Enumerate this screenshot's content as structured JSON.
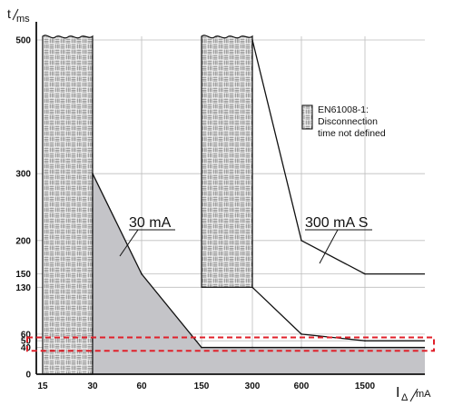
{
  "chart_data": {
    "type": "line",
    "y_axis_label": {
      "main": "t",
      "sub": "ms"
    },
    "x_axis_label": {
      "main": "I",
      "sub1": "Δ",
      "sub2": "mA"
    },
    "x_ticks": [
      "15",
      "30",
      "60",
      "150",
      "300",
      "600",
      "1500"
    ],
    "y_ticks": [
      0,
      40,
      50,
      60,
      130,
      150,
      200,
      300,
      500
    ],
    "ylim": [
      0,
      500
    ],
    "grid": true,
    "series": [
      {
        "name": "30 mA",
        "x": [
          "30",
          "60",
          "150",
          "300",
          "600",
          "1500"
        ],
        "y": [
          300,
          150,
          40,
          40,
          40,
          40
        ]
      },
      {
        "name": "300 mA S",
        "x": [
          "300",
          "600",
          "1500"
        ],
        "y": [
          500,
          200,
          150
        ]
      },
      {
        "name": "",
        "x": [
          "300",
          "600",
          "1500"
        ],
        "y": [
          130,
          60,
          50
        ]
      }
    ],
    "hatched_regions": [
      {
        "x_from": "15",
        "x_to": "30"
      },
      {
        "x_from": "150",
        "x_to": "300"
      }
    ],
    "highlight_band": {
      "y_from": 35,
      "y_to": 55,
      "color": "#e0202a"
    },
    "legend": {
      "lines": [
        "EN61008-1:",
        "Disconnection",
        "time not defined"
      ],
      "placement": "top-right"
    },
    "annotations": [
      "30 mA",
      "300 mA S"
    ],
    "colors": {
      "shaded": "#c4c4c8",
      "highlight": "#e0202a",
      "lines": "#111111"
    }
  }
}
